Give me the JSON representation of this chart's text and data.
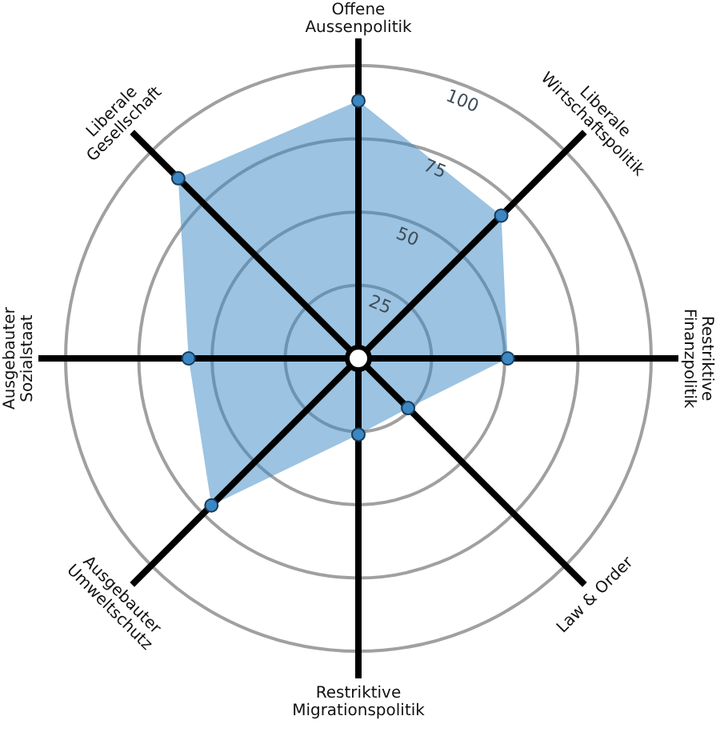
{
  "chart_data": {
    "type": "radar",
    "categories": [
      "Offene\nAussenpolitik",
      "Liberale\nWirtschaftspolitik",
      "Restriktive\nFinanzpolitik",
      "Law & Order",
      "Restriktive\nMigrationspolitik",
      "Ausgebauter\nUmweltschutz",
      "Ausgebauter\nSozialstaat",
      "Liberale\nGesellschaft"
    ],
    "series": [
      {
        "color": "#3a87c4",
        "values": [
          88,
          69,
          51,
          24,
          26,
          71,
          58,
          87
        ]
      }
    ],
    "ylim": [
      0,
      100
    ],
    "yticks": [
      25,
      50,
      75,
      100
    ],
    "grid": true,
    "marker": "circle"
  }
}
